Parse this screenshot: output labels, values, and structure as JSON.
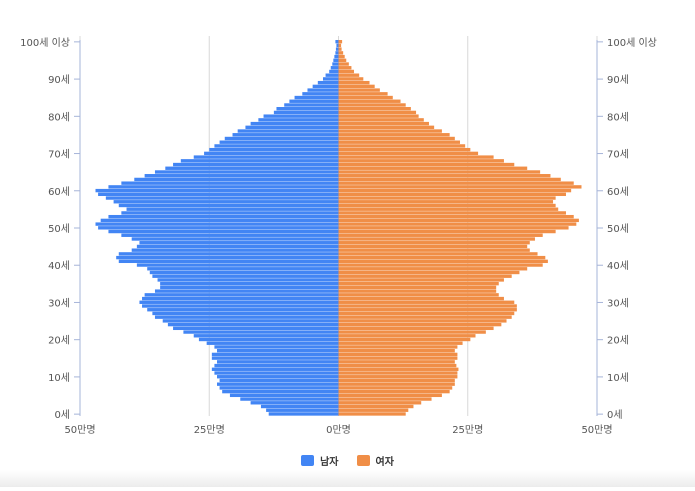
{
  "colors": {
    "male": "#4285f4",
    "female": "#f08e47",
    "grid": "#d8d8d8",
    "axis": "#a6b4d8",
    "text": "#555555"
  },
  "legend": {
    "male": "남자",
    "female": "여자"
  },
  "chart_data": {
    "type": "bar",
    "orientation": "horizontal-population-pyramid",
    "title": "",
    "xlabel": "",
    "ylabel": "",
    "xlim": [
      -500000,
      500000
    ],
    "x_ticks": [
      {
        "value": -500000,
        "label": "50만명"
      },
      {
        "value": -250000,
        "label": "25만명"
      },
      {
        "value": 0,
        "label": "0만명"
      },
      {
        "value": 250000,
        "label": "25만명"
      },
      {
        "value": 500000,
        "label": "50만명"
      }
    ],
    "y_ticks": [
      {
        "age": 0,
        "label": "0세"
      },
      {
        "age": 10,
        "label": "10세"
      },
      {
        "age": 20,
        "label": "20세"
      },
      {
        "age": 30,
        "label": "30세"
      },
      {
        "age": 40,
        "label": "40세"
      },
      {
        "age": 50,
        "label": "50세"
      },
      {
        "age": 60,
        "label": "60세"
      },
      {
        "age": 70,
        "label": "70세"
      },
      {
        "age": 80,
        "label": "80세"
      },
      {
        "age": 90,
        "label": "90세"
      },
      {
        "age": 100,
        "label": "100세 이상"
      }
    ],
    "grid": true,
    "legend_position": "bottom",
    "categories": [
      "0",
      "1",
      "2",
      "3",
      "4",
      "5",
      "6",
      "7",
      "8",
      "9",
      "10",
      "11",
      "12",
      "13",
      "14",
      "15",
      "16",
      "17",
      "18",
      "19",
      "20",
      "21",
      "22",
      "23",
      "24",
      "25",
      "26",
      "27",
      "28",
      "29",
      "30",
      "31",
      "32",
      "33",
      "34",
      "35",
      "36",
      "37",
      "38",
      "39",
      "40",
      "41",
      "42",
      "43",
      "44",
      "45",
      "46",
      "47",
      "48",
      "49",
      "50",
      "51",
      "52",
      "53",
      "54",
      "55",
      "56",
      "57",
      "58",
      "59",
      "60",
      "61",
      "62",
      "63",
      "64",
      "65",
      "66",
      "67",
      "68",
      "69",
      "70",
      "71",
      "72",
      "73",
      "74",
      "75",
      "76",
      "77",
      "78",
      "79",
      "80",
      "81",
      "82",
      "83",
      "84",
      "85",
      "86",
      "87",
      "88",
      "89",
      "90",
      "91",
      "92",
      "93",
      "94",
      "95",
      "96",
      "97",
      "98",
      "99",
      "100+"
    ],
    "series": [
      {
        "name": "남자",
        "values": [
          135000,
          140000,
          150000,
          170000,
          190000,
          210000,
          225000,
          230000,
          235000,
          230000,
          235000,
          240000,
          245000,
          240000,
          235000,
          245000,
          245000,
          235000,
          240000,
          255000,
          270000,
          280000,
          300000,
          320000,
          330000,
          340000,
          355000,
          360000,
          370000,
          380000,
          385000,
          380000,
          375000,
          355000,
          345000,
          345000,
          350000,
          360000,
          365000,
          370000,
          390000,
          425000,
          430000,
          425000,
          400000,
          390000,
          385000,
          400000,
          420000,
          445000,
          465000,
          470000,
          460000,
          445000,
          420000,
          410000,
          425000,
          435000,
          450000,
          465000,
          470000,
          445000,
          420000,
          395000,
          375000,
          355000,
          335000,
          320000,
          305000,
          280000,
          260000,
          250000,
          240000,
          230000,
          220000,
          205000,
          195000,
          180000,
          170000,
          155000,
          145000,
          125000,
          120000,
          105000,
          95000,
          85000,
          70000,
          60000,
          50000,
          40000,
          30000,
          25000,
          18000,
          15000,
          12000,
          10000,
          8000,
          6000,
          5000,
          4000,
          6000
        ]
      },
      {
        "name": "여자",
        "values": [
          130000,
          135000,
          145000,
          160000,
          180000,
          200000,
          215000,
          220000,
          225000,
          225000,
          230000,
          230000,
          232000,
          228000,
          225000,
          230000,
          230000,
          225000,
          230000,
          240000,
          255000,
          265000,
          285000,
          300000,
          315000,
          325000,
          335000,
          340000,
          345000,
          345000,
          340000,
          320000,
          310000,
          305000,
          305000,
          310000,
          320000,
          335000,
          350000,
          365000,
          395000,
          405000,
          400000,
          385000,
          370000,
          365000,
          370000,
          380000,
          395000,
          420000,
          445000,
          460000,
          465000,
          455000,
          440000,
          425000,
          420000,
          415000,
          420000,
          440000,
          450000,
          470000,
          455000,
          430000,
          410000,
          390000,
          365000,
          340000,
          320000,
          300000,
          270000,
          255000,
          245000,
          235000,
          225000,
          215000,
          200000,
          185000,
          175000,
          165000,
          155000,
          150000,
          140000,
          130000,
          120000,
          105000,
          95000,
          80000,
          70000,
          60000,
          48000,
          40000,
          30000,
          25000,
          20000,
          15000,
          12000,
          9000,
          6000,
          5000,
          7000
        ]
      }
    ]
  }
}
